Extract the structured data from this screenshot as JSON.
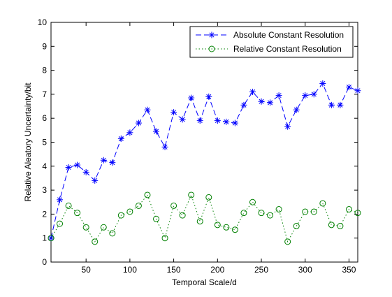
{
  "chart_data": {
    "type": "line",
    "title": "",
    "xlabel": "Temporal Scale/d",
    "ylabel": "Relative Aleatory Uncertainty/bit",
    "xlim": [
      10,
      360
    ],
    "ylim": [
      0,
      10
    ],
    "xticks": [
      50,
      100,
      150,
      200,
      250,
      300,
      350
    ],
    "yticks": [
      0,
      1,
      2,
      3,
      4,
      5,
      6,
      7,
      8,
      9,
      10
    ],
    "grid": false,
    "legend_position": "top-right",
    "x": [
      10,
      20,
      30,
      40,
      50,
      60,
      70,
      80,
      90,
      100,
      110,
      120,
      130,
      140,
      150,
      160,
      170,
      180,
      190,
      200,
      210,
      220,
      230,
      240,
      250,
      260,
      270,
      280,
      290,
      300,
      310,
      320,
      330,
      340,
      350,
      360
    ],
    "series": [
      {
        "name": "Absolute Constant Resolution",
        "color": "#0000ff",
        "line_style": "dashed",
        "marker": "asterisk",
        "values": [
          1.0,
          2.6,
          3.95,
          4.05,
          3.75,
          3.4,
          4.25,
          4.15,
          5.15,
          5.4,
          5.8,
          6.35,
          5.45,
          4.8,
          6.25,
          5.95,
          6.85,
          5.9,
          6.9,
          5.9,
          5.85,
          5.8,
          6.55,
          7.1,
          6.7,
          6.65,
          6.95,
          5.65,
          6.35,
          6.95,
          7.0,
          7.45,
          6.55,
          6.55,
          7.3,
          7.15
        ]
      },
      {
        "name": "Relative Constant Resolution",
        "color": "#008000",
        "line_style": "dotted",
        "marker": "circle",
        "values": [
          1.0,
          1.6,
          2.35,
          2.05,
          1.45,
          0.85,
          1.45,
          1.2,
          1.95,
          2.1,
          2.35,
          2.8,
          1.8,
          1.0,
          2.35,
          1.95,
          2.8,
          1.7,
          2.7,
          1.55,
          1.45,
          1.35,
          2.05,
          2.5,
          2.05,
          1.95,
          2.2,
          0.85,
          1.5,
          2.1,
          2.1,
          2.45,
          1.55,
          1.5,
          2.2,
          2.05
        ]
      }
    ]
  }
}
